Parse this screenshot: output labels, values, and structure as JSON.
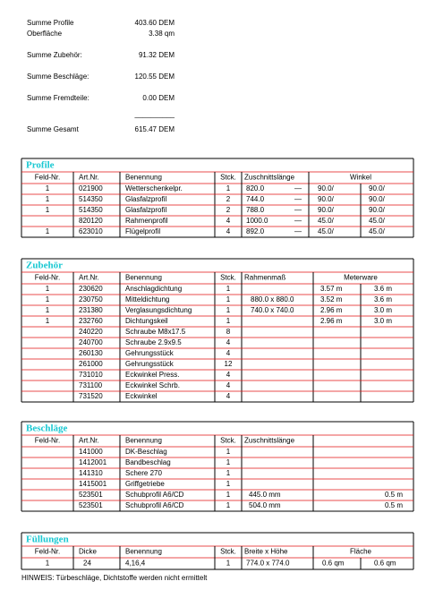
{
  "summary": {
    "items": [
      {
        "label": "Summe Profile",
        "value": "403.60 DEM"
      },
      {
        "label": "Oberfläche",
        "value": "3.38 qm"
      },
      {
        "label": "Summe Zubehör:",
        "value": "91.32 DEM"
      },
      {
        "label": "Summe Beschläge:",
        "value": "120.55 DEM"
      },
      {
        "label": "Summe Fremdteile:",
        "value": "0.00 DEM"
      }
    ],
    "separator": "__________",
    "total": {
      "label": "Summe Gesamt",
      "value": "615.47 DEM"
    }
  },
  "tables": [
    {
      "title": "Profile",
      "headers": [
        "Feld-Nr.",
        "Art.Nr.",
        "Benennung",
        "Stck.",
        "Zuschnittslänge",
        "Winkel"
      ],
      "rows": [
        [
          "1",
          "021900",
          "Wetterschenkelpr.",
          "1",
          "820.0",
          "—",
          "90.0/",
          "90.0/"
        ],
        [
          "1",
          "514350",
          "Glasfalzprofil",
          "2",
          "744.0",
          "—",
          "90.0/",
          "90.0/"
        ],
        [
          "1",
          "514350",
          "Glasfalzprofil",
          "2",
          "788.0",
          "—",
          "90.0/",
          "90.0/"
        ],
        [
          null,
          "820120",
          "Rahmenprofil",
          "4",
          "1000.0",
          "—",
          "45.0/",
          "45.0/"
        ],
        [
          "1",
          "623010",
          "Flügelprofil",
          "4",
          "892.0",
          "—",
          "45.0/",
          "45.0/"
        ]
      ]
    },
    {
      "title": "Zubehör",
      "headers": [
        "Feld-Nr.",
        "Art.Nr.",
        "Benennung",
        "Stck.",
        "Rahmenmaß",
        "Meterware"
      ],
      "rows": [
        [
          "1",
          "230620",
          "Anschlagdichtung",
          "1",
          null,
          "3.57 m",
          "3.6 m"
        ],
        [
          "1",
          "230750",
          "Mitteldichtung",
          "1",
          "880.0 x 880.0",
          "3.52 m",
          "3.6 m"
        ],
        [
          "1",
          "231380",
          "Verglasungsdichtung",
          "1",
          "740.0 x 740.0",
          "2.96 m",
          "3.0 m"
        ],
        [
          "1",
          "232760",
          "Dichtungskeil",
          "1",
          null,
          "2.96 m",
          "3.0 m"
        ],
        [
          null,
          "240220",
          "Schraube M8x17.5",
          "8",
          null,
          null,
          null
        ],
        [
          null,
          "240700",
          "Schraube 2.9x9.5",
          "4",
          null,
          null,
          null
        ],
        [
          null,
          "260130",
          "Gehrungsstück",
          "4",
          null,
          null,
          null
        ],
        [
          null,
          "261000",
          "Gehrungsstück",
          "12",
          null,
          null,
          null
        ],
        [
          null,
          "731010",
          "Eckwinkel Press.",
          "4",
          null,
          null,
          null
        ],
        [
          null,
          "731100",
          "Eckwinkel Schrb.",
          "4",
          null,
          null,
          null
        ],
        [
          null,
          "731520",
          "Eckwinkel",
          "4",
          null,
          null,
          null
        ]
      ]
    },
    {
      "title": "Beschläge",
      "headers": [
        "Feld-Nr.",
        "Art.Nr.",
        "Benennung",
        "Stck.",
        "Zuschnittslänge"
      ],
      "rows": [
        [
          null,
          "141000",
          "DK-Beschlag",
          "1",
          null,
          null
        ],
        [
          null,
          "1412001",
          "Bandbeschlag",
          "1",
          null,
          null
        ],
        [
          null,
          "141310",
          "Schere 270",
          "1",
          null,
          null
        ],
        [
          null,
          "1415001",
          "Griffgetriebe",
          "1",
          null,
          null
        ],
        [
          null,
          "523501",
          "Schubprofil A6/CD",
          "1",
          "445.0 mm",
          "0.5 m"
        ],
        [
          null,
          "523501",
          "Schubprofil A6/CD",
          "1",
          "504.0 mm",
          "0.5 m"
        ]
      ]
    },
    {
      "title": "Füllungen",
      "headers": [
        "Feld-Nr.",
        "Dicke",
        "Benennung",
        "Stck.",
        "Breite x Höhe",
        "Fläche"
      ],
      "rows": [
        [
          "1",
          "24",
          "4,16,4",
          "1",
          "774.0 x 774.0",
          "0.6 qm",
          "0.6 qm"
        ]
      ]
    }
  ],
  "note": "HINWEIS: Türbeschläge, Dichtstoffe werden nicht ermittelt"
}
